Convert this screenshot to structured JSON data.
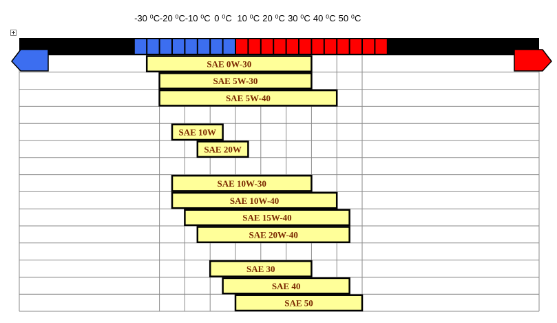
{
  "chart_data": {
    "type": "bar",
    "orientation": "horizontal-range",
    "xlabel": "",
    "ylabel": "",
    "unit": "°C",
    "x_ticks": [
      {
        "value": -30,
        "label": "-30 ⁰C"
      },
      {
        "value": -20,
        "label": "-20 ⁰C"
      },
      {
        "value": -10,
        "label": "-10 ⁰C"
      },
      {
        "value": 0,
        "label": "0 ⁰C"
      },
      {
        "value": 10,
        "label": "10 ⁰C"
      },
      {
        "value": 20,
        "label": "20 ⁰C"
      },
      {
        "value": 30,
        "label": "30 ⁰C"
      },
      {
        "value": 40,
        "label": "40 ⁰C"
      },
      {
        "value": 50,
        "label": "50 ⁰C"
      }
    ],
    "xlim": [
      -40,
      60
    ],
    "grid": true,
    "scale_colors": {
      "cold": "#3c6ef0",
      "hot": "#ff0000"
    },
    "bar_color": "#ffff99",
    "row_count": 15,
    "bars": [
      {
        "row": 0,
        "label": "SAE 0W-30",
        "min": -35,
        "max": 30
      },
      {
        "row": 1,
        "label": "SAE 5W-30",
        "min": -30,
        "max": 30
      },
      {
        "row": 2,
        "label": "SAE 5W-40",
        "min": -30,
        "max": 40
      },
      {
        "row": 4,
        "label": "SAE 10W",
        "min": -25,
        "max": -5
      },
      {
        "row": 5,
        "label": "SAE 20W",
        "min": -15,
        "max": 5
      },
      {
        "row": 7,
        "label": "SAE 10W-30",
        "min": -25,
        "max": 30
      },
      {
        "row": 8,
        "label": "SAE 10W-40",
        "min": -25,
        "max": 40
      },
      {
        "row": 9,
        "label": "SAE 15W-40",
        "min": -20,
        "max": 45
      },
      {
        "row": 10,
        "label": "SAE 20W-40",
        "min": -15,
        "max": 45
      },
      {
        "row": 12,
        "label": "SAE 30",
        "min": -10,
        "max": 30
      },
      {
        "row": 13,
        "label": "SAE 40",
        "min": -5,
        "max": 45
      },
      {
        "row": 14,
        "label": "SAE 50",
        "min": 0,
        "max": 50
      }
    ]
  }
}
